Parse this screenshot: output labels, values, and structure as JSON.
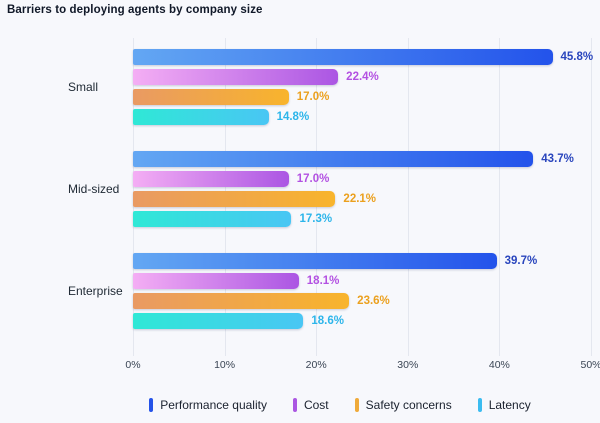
{
  "title": "Barriers to deploying agents by company size",
  "colors": {
    "background": "#F7F8FC",
    "gridline": "#E4E7EF",
    "title_text": "#101828",
    "category_text": "#212B36",
    "tick_text": "#3A4554",
    "legend_text": "#1A212E"
  },
  "chart_data": {
    "type": "bar",
    "orientation": "horizontal",
    "title": "Barriers to deploying agents by company size",
    "categories": [
      "Small",
      "Mid-sized",
      "Enterprise"
    ],
    "series": [
      {
        "name": "Performance quality",
        "values": [
          45.8,
          43.7,
          39.7
        ],
        "labels": [
          "45.8%",
          "43.7%",
          "39.7%"
        ],
        "gradient": [
          "#63A7F3",
          "#2353EB"
        ],
        "label_color": "#2945BD",
        "legend_color": "#2553E8"
      },
      {
        "name": "Cost",
        "values": [
          22.4,
          17.0,
          18.1
        ],
        "labels": [
          "22.4%",
          "17.0%",
          "18.1%"
        ],
        "gradient": [
          "#F4AEF4",
          "#AB56E3"
        ],
        "label_color": "#B351E2",
        "legend_color": "#AB57E2"
      },
      {
        "name": "Safety concerns",
        "values": [
          17.0,
          22.1,
          23.6
        ],
        "labels": [
          "17.0%",
          "22.1%",
          "23.6%"
        ],
        "gradient": [
          "#E99A63",
          "#F8B42C"
        ],
        "label_color": "#EBA01E",
        "legend_color": "#EFAA3A"
      },
      {
        "name": "Latency",
        "values": [
          14.8,
          17.3,
          18.6
        ],
        "labels": [
          "14.8%",
          "17.3%",
          "18.6%"
        ],
        "gradient": [
          "#2FE8D6",
          "#49C6F4"
        ],
        "label_color": "#2CB5EA",
        "legend_color": "#3BBCF0"
      }
    ],
    "xlabel": "",
    "ylabel": "",
    "xlim": [
      0,
      50
    ],
    "x_ticks": [
      "0%",
      "10%",
      "20%",
      "30%",
      "40%",
      "50%"
    ],
    "grid": true,
    "legend_position": "bottom"
  },
  "layout_numbers": {
    "group_top_offset": 11,
    "group_pitch": 102
  }
}
